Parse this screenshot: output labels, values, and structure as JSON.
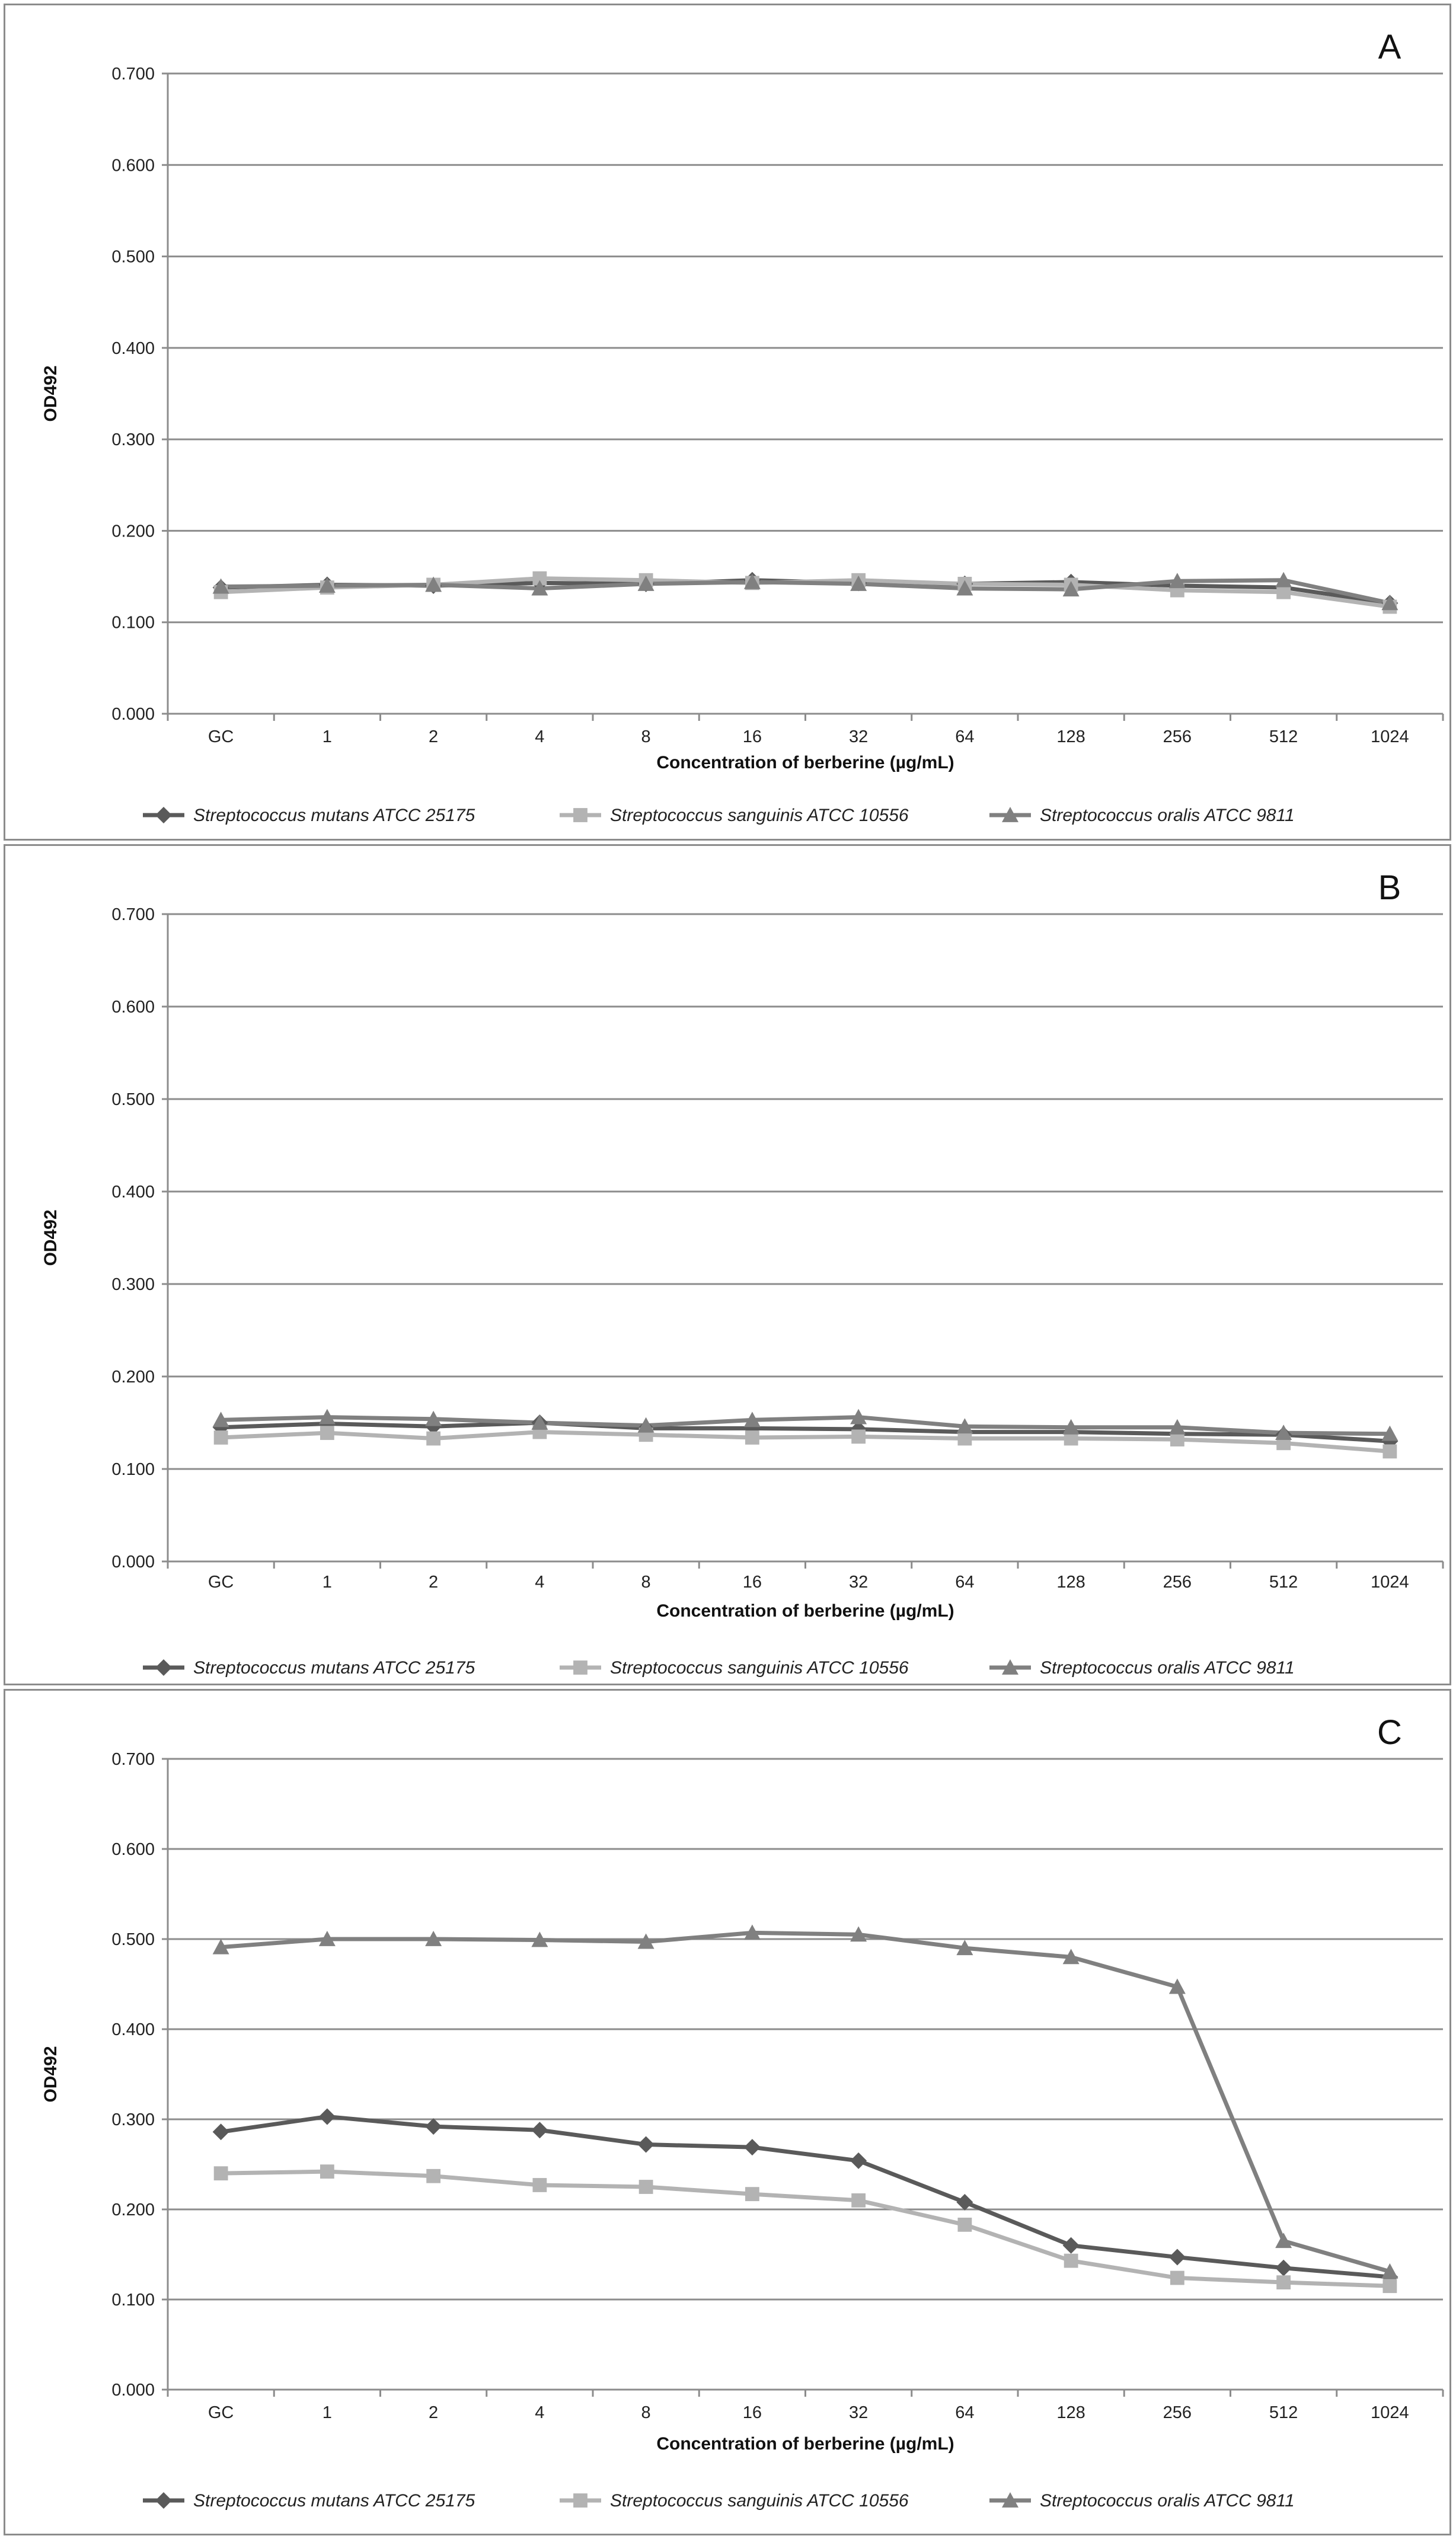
{
  "chart_data": [
    {
      "type": "line",
      "panel_label": "A",
      "xlabel": "Concentration of berberine (µg/mL)",
      "ylabel": "OD492",
      "ylim": [
        0,
        0.7
      ],
      "yticks": [
        "0.000",
        "0.100",
        "0.200",
        "0.300",
        "0.400",
        "0.500",
        "0.600",
        "0.700"
      ],
      "categories": [
        "GC",
        "1",
        "2",
        "4",
        "8",
        "16",
        "32",
        "64",
        "128",
        "256",
        "512",
        "1024"
      ],
      "grid": "horizontal",
      "legend": "bottom",
      "series": [
        {
          "name": "Streptococcus mutans ATCC 25175",
          "color": "#5a5a5a",
          "marker": "diamond",
          "values": [
            0.138,
            0.141,
            0.14,
            0.143,
            0.142,
            0.146,
            0.143,
            0.142,
            0.144,
            0.14,
            0.138,
            0.121
          ]
        },
        {
          "name": "Streptococcus sanguinis ATCC 10556",
          "color": "#b3b3b3",
          "marker": "square",
          "values": [
            0.133,
            0.138,
            0.141,
            0.148,
            0.146,
            0.143,
            0.146,
            0.142,
            0.141,
            0.135,
            0.133,
            0.117
          ]
        },
        {
          "name": "Streptococcus oralis ATCC 9811",
          "color": "#808080",
          "marker": "triangle",
          "values": [
            0.139,
            0.14,
            0.141,
            0.137,
            0.142,
            0.144,
            0.142,
            0.137,
            0.136,
            0.145,
            0.146,
            0.121
          ]
        }
      ]
    },
    {
      "type": "line",
      "panel_label": "B",
      "xlabel": "Concentration of berberine (µg/mL)",
      "ylabel": "OD492",
      "ylim": [
        0,
        0.7
      ],
      "yticks": [
        "0.000",
        "0.100",
        "0.200",
        "0.300",
        "0.400",
        "0.500",
        "0.600",
        "0.700"
      ],
      "categories": [
        "GC",
        "1",
        "2",
        "4",
        "8",
        "16",
        "32",
        "64",
        "128",
        "256",
        "512",
        "1024"
      ],
      "grid": "horizontal",
      "legend": "bottom",
      "series": [
        {
          "name": "Streptococcus mutans ATCC 25175",
          "color": "#5a5a5a",
          "marker": "diamond",
          "values": [
            0.145,
            0.149,
            0.146,
            0.15,
            0.144,
            0.144,
            0.143,
            0.14,
            0.14,
            0.138,
            0.137,
            0.13
          ]
        },
        {
          "name": "Streptococcus sanguinis ATCC 10556",
          "color": "#b3b3b3",
          "marker": "square",
          "values": [
            0.134,
            0.139,
            0.133,
            0.14,
            0.137,
            0.134,
            0.135,
            0.133,
            0.133,
            0.132,
            0.128,
            0.119
          ]
        },
        {
          "name": "Streptococcus oralis ATCC 9811",
          "color": "#808080",
          "marker": "triangle",
          "values": [
            0.153,
            0.156,
            0.154,
            0.15,
            0.147,
            0.153,
            0.156,
            0.146,
            0.145,
            0.145,
            0.139,
            0.138
          ]
        }
      ]
    },
    {
      "type": "line",
      "panel_label": "C",
      "xlabel": "Concentration of berberine (µg/mL)",
      "ylabel": "OD492",
      "ylim": [
        0,
        0.7
      ],
      "yticks": [
        "0.000",
        "0.100",
        "0.200",
        "0.300",
        "0.400",
        "0.500",
        "0.600",
        "0.700"
      ],
      "categories": [
        "GC",
        "1",
        "2",
        "4",
        "8",
        "16",
        "32",
        "64",
        "128",
        "256",
        "512",
        "1024"
      ],
      "grid": "horizontal",
      "legend": "bottom",
      "series": [
        {
          "name": "Streptococcus mutans ATCC 25175",
          "color": "#5a5a5a",
          "marker": "diamond",
          "values": [
            0.286,
            0.303,
            0.292,
            0.288,
            0.272,
            0.269,
            0.254,
            0.208,
            0.16,
            0.147,
            0.135,
            0.125
          ]
        },
        {
          "name": "Streptococcus sanguinis ATCC 10556",
          "color": "#b3b3b3",
          "marker": "square",
          "values": [
            0.24,
            0.242,
            0.237,
            0.227,
            0.225,
            0.217,
            0.21,
            0.183,
            0.143,
            0.124,
            0.119,
            0.115
          ]
        },
        {
          "name": "Streptococcus oralis ATCC 9811",
          "color": "#808080",
          "marker": "triangle",
          "values": [
            0.491,
            0.5,
            0.5,
            0.499,
            0.497,
            0.507,
            0.505,
            0.49,
            0.48,
            0.447,
            0.165,
            0.131
          ]
        }
      ]
    }
  ]
}
